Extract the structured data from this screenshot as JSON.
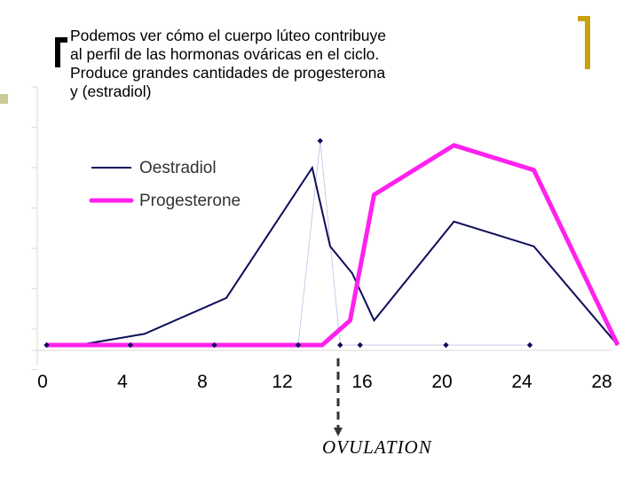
{
  "slide": {
    "text": "Podemos ver cómo el cuerpo lúteo contribuye\nal perfil de las hormonas ováricas en el ciclo.\nProduce grandes cantidades de progesterona\ny (estradiol)"
  },
  "colors": {
    "oestradiol": "#0d0d5a",
    "progesterone": "#ff22ee",
    "faint": "#c8cde8",
    "axis": "#d9d9d9",
    "bracket_right": "#c8a20a",
    "bullet": "#c9cc96"
  },
  "chart_data": {
    "type": "line",
    "title": "",
    "xlabel": "",
    "ylabel": "",
    "xlim": [
      0,
      29
    ],
    "ylim": [
      0,
      1
    ],
    "x_ticks": [
      0,
      4,
      8,
      12,
      16,
      20,
      24,
      28
    ],
    "y_ticks_shown": false,
    "legend_position": "top-left",
    "series": [
      {
        "name": "Oestradiol",
        "x": [
          0.2,
          1.8,
          5.1,
          9.2,
          13.5,
          14.4,
          15.5,
          16.6,
          20.6,
          24.6,
          28.8
        ],
        "y": [
          0.0,
          0.0,
          0.05,
          0.21,
          0.79,
          0.44,
          0.32,
          0.11,
          0.55,
          0.44,
          0.0
        ]
      },
      {
        "name": "Progesterone",
        "x": [
          0.2,
          14.0,
          15.4,
          16.6,
          20.6,
          24.6,
          28.8
        ],
        "y": [
          0.0,
          0.0,
          0.11,
          0.67,
          0.89,
          0.78,
          0.0
        ]
      },
      {
        "x": [
          0.2,
          4.4,
          8.6,
          12.8,
          13.9,
          14.9,
          15.9,
          20.2,
          24.4
        ],
        "y": [
          0.0,
          0.0,
          0.0,
          0.0,
          0.91,
          0.0,
          0.0,
          0.0,
          0.0
        ]
      }
    ],
    "annotation": {
      "text": "OVULATION",
      "x": 14.8
    }
  }
}
